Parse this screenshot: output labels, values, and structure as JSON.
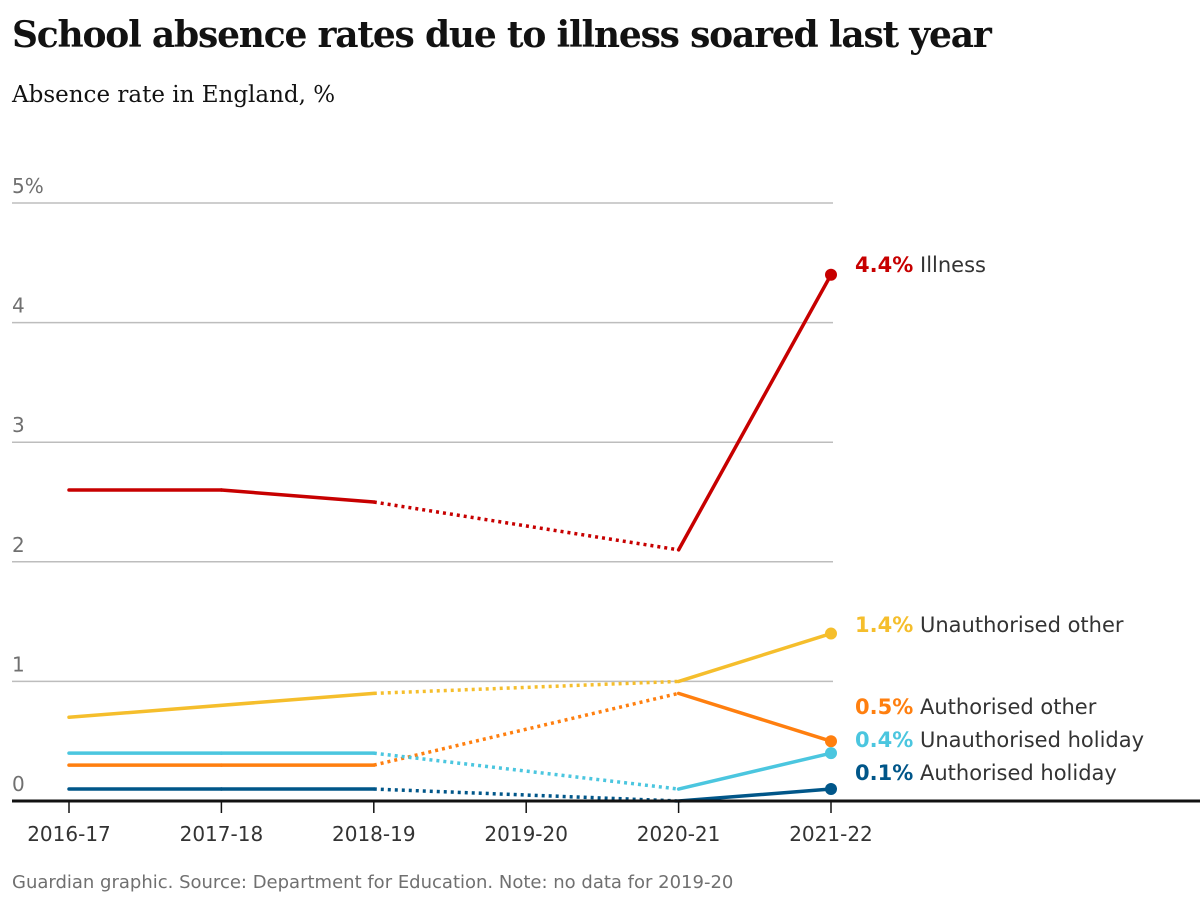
{
  "header": {
    "title": "School absence rates due to illness soared last year",
    "subtitle": "Absence rate in England, %"
  },
  "footer": {
    "source": "Guardian graphic. Source: Department for Education. Note: no data for 2019-20"
  },
  "chart_data": {
    "type": "line",
    "title": "School absence rates due to illness soared last year",
    "subtitle": "Absence rate in England, %",
    "categories": [
      "2016-17",
      "2017-18",
      "2018-19",
      "2019-20",
      "2020-21",
      "2021-22"
    ],
    "ylim": [
      0,
      5
    ],
    "y_ticks": [
      {
        "value": 0,
        "label": "0"
      },
      {
        "value": 1,
        "label": "1"
      },
      {
        "value": 2,
        "label": "2"
      },
      {
        "value": 3,
        "label": "3"
      },
      {
        "value": 4,
        "label": "4"
      },
      {
        "value": 5,
        "label": "5%"
      }
    ],
    "grid": true,
    "missing_category": "2019-20",
    "series": [
      {
        "name": "Illness",
        "value_label": "4.4%",
        "color": "#c70000",
        "values": [
          2.6,
          2.6,
          2.5,
          null,
          2.1,
          4.4
        ]
      },
      {
        "name": "Unauthorised other",
        "value_label": "1.4%",
        "color": "#f5be2c",
        "values": [
          0.7,
          null,
          0.9,
          null,
          1.0,
          1.4
        ]
      },
      {
        "name": "Authorised other",
        "value_label": "0.5%",
        "color": "#ff7f0f",
        "values": [
          0.3,
          0.3,
          0.3,
          null,
          0.9,
          0.5
        ]
      },
      {
        "name": "Unauthorised holiday",
        "value_label": "0.4%",
        "color": "#4bc6df",
        "values": [
          0.4,
          0.4,
          0.4,
          null,
          0.1,
          0.4
        ]
      },
      {
        "name": "Authorised holiday",
        "value_label": "0.1%",
        "color": "#005689",
        "values": [
          0.1,
          0.1,
          0.1,
          null,
          0.0,
          0.1
        ]
      }
    ]
  }
}
